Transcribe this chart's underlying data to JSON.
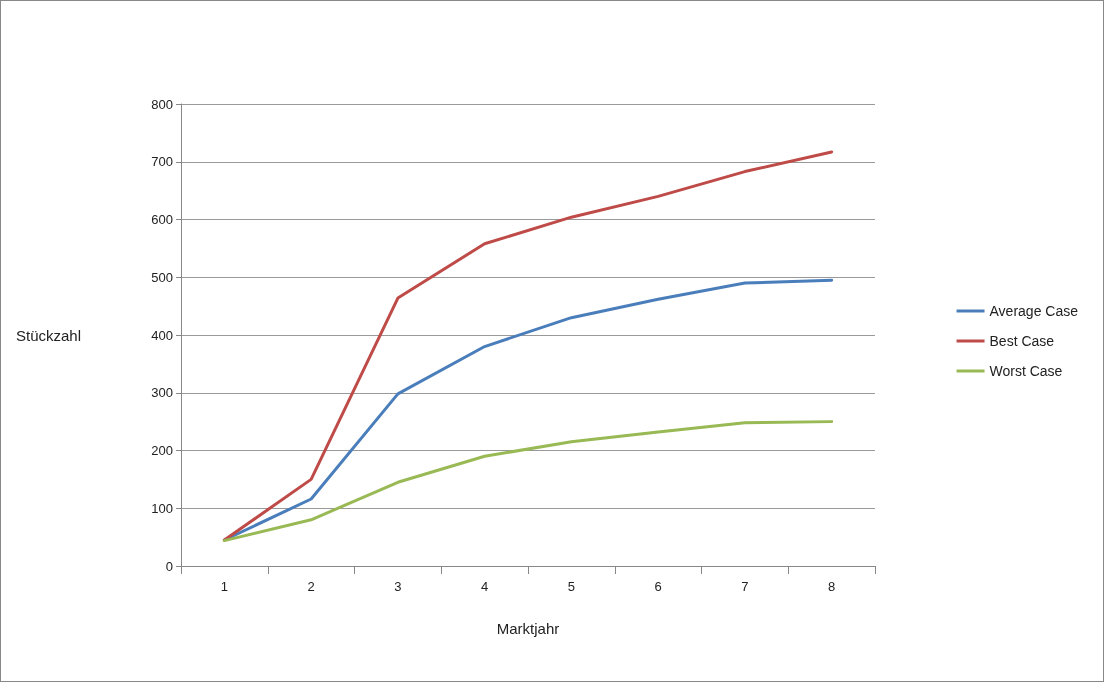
{
  "chart_data": {
    "type": "line",
    "xlabel": "Marktjahr",
    "ylabel": "Stückzahl",
    "categories": [
      "1",
      "2",
      "3",
      "4",
      "5",
      "6",
      "7",
      "8"
    ],
    "series": [
      {
        "name": "Average Case",
        "color": "#4a7ebb",
        "values": [
          45,
          116,
          298,
          380,
          430,
          462,
          490,
          495
        ]
      },
      {
        "name": "Best Case",
        "color": "#be4b48",
        "values": [
          45,
          150,
          464,
          558,
          604,
          640,
          683,
          717
        ]
      },
      {
        "name": "Worst Case",
        "color": "#98b954",
        "values": [
          44,
          80,
          145,
          190,
          215,
          232,
          248,
          250
        ]
      }
    ],
    "ylim": [
      0,
      800
    ],
    "yticks": [
      0,
      100,
      200,
      300,
      400,
      500,
      600,
      700,
      800
    ],
    "grid": "y",
    "legend": "right",
    "marker": "none",
    "line_style": "solid"
  }
}
